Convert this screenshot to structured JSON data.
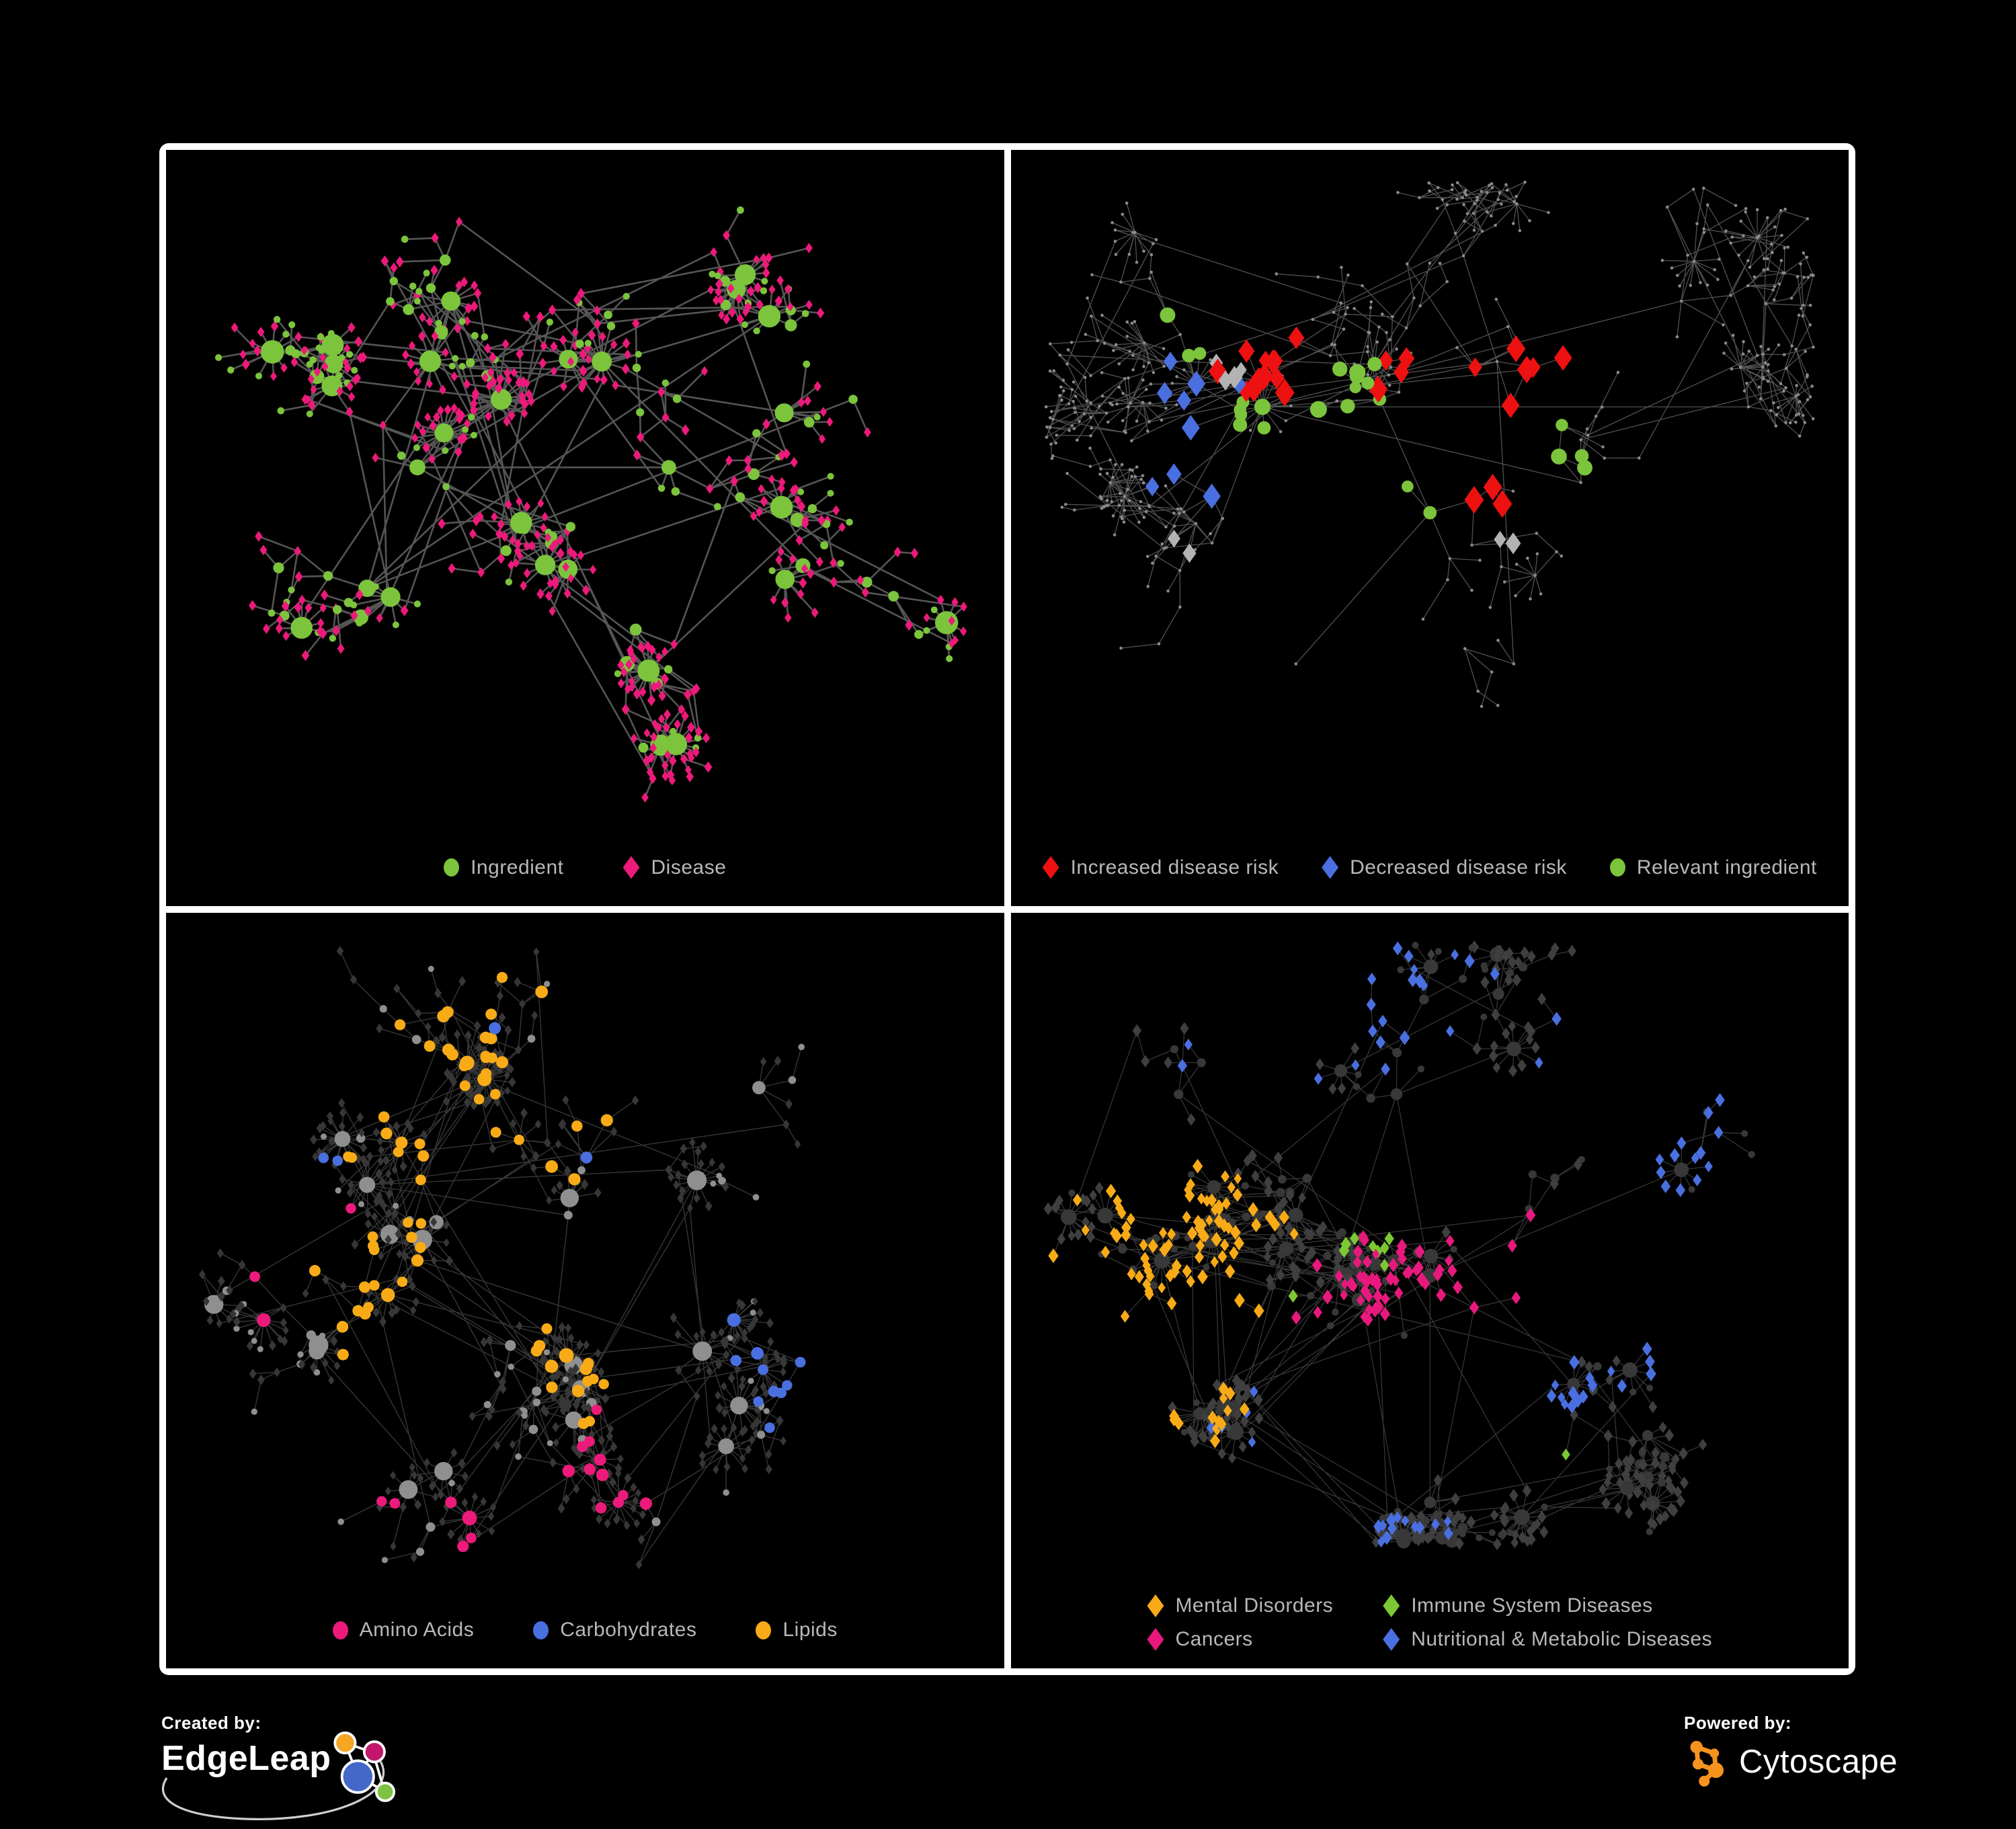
{
  "page": {
    "background": "#000000",
    "frame_color": "#ffffff"
  },
  "footer": {
    "created_by": "Created by:",
    "created_brand": "EdgeLeap",
    "powered_by": "Powered by:",
    "powered_brand": "Cytoscape"
  },
  "colors": {
    "ingredient_green": "#7cc43c",
    "disease_pink": "#ec1a7a",
    "increased_red": "#ee1111",
    "decreased_blue": "#4a6fe0",
    "neutral_silver": "#b3b3b3",
    "lipids_orange": "#f8ab17",
    "immune_green": "#7cc832",
    "dim_node": "#3d3d3d",
    "edge_gray": "#6a6a6a",
    "legend_text": "#b8b8b8"
  },
  "chart_data": [
    {
      "id": "ingredient-disease-network",
      "type": "network",
      "position": "top-left",
      "description": "Ingredient-disease association network: green circles are ingredients (size ~ degree), pink diamonds are diseases.",
      "node_count_estimate": 560,
      "edge_count_estimate": 620,
      "legend": [
        {
          "label": "Ingredient",
          "shape": "circle",
          "color": "#7cc43c"
        },
        {
          "label": "Disease",
          "shape": "diamond",
          "color": "#ec1a7a"
        }
      ],
      "gen": {
        "seed": 101,
        "n": 560,
        "padBottom": 155,
        "anchors": [
          [
            0.4,
            0.33
          ],
          [
            0.3,
            0.42
          ],
          [
            0.52,
            0.28
          ],
          [
            0.46,
            0.52
          ],
          [
            0.24,
            0.58
          ],
          [
            0.6,
            0.42
          ],
          [
            0.72,
            0.22
          ],
          [
            0.34,
            0.2
          ],
          [
            0.55,
            0.68
          ],
          [
            0.76,
            0.55
          ],
          [
            0.18,
            0.3
          ],
          [
            0.82,
            0.33
          ]
        ],
        "chainProb": 0.45,
        "hubBias": 1.15,
        "step": 46,
        "burstProb": 0.1,
        "burstMin": 7,
        "burstMax": 15,
        "leafDist": 36,
        "extraEdges": 60
      },
      "render": {
        "edge": {
          "color": "#6a6a6a",
          "opacity": 0.8,
          "width": 2.6
        },
        "base": {
          "mode": "typed",
          "ingredient": {
            "shape": "circle",
            "color": "#7cc43c",
            "size": 5.5,
            "sizeVar": 1.2
          },
          "disease": {
            "shape": "diamond",
            "color": "#ec1a7a",
            "size": 7
          }
        },
        "highlights": []
      }
    },
    {
      "id": "disease-risk-network",
      "type": "network",
      "position": "top-right",
      "description": "Same association network, dimmed; diamonds mark diseases with increased (red), decreased (blue) or undirected (silver) risk; green circles are relevant ingredients.",
      "node_count_estimate": 540,
      "edge_count_estimate": 590,
      "legend": [
        {
          "label": "Increased disease risk",
          "shape": "diamond",
          "color": "#ee1111"
        },
        {
          "label": "Decreased disease risk",
          "shape": "diamond",
          "color": "#4a6fe0"
        },
        {
          "label": "Relevant ingredient",
          "shape": "circle",
          "color": "#7cc43c"
        }
      ],
      "gen": {
        "seed": 202,
        "n": 540,
        "padBottom": 150,
        "anchors": [
          [
            0.44,
            0.33
          ],
          [
            0.3,
            0.34
          ],
          [
            0.58,
            0.28
          ],
          [
            0.5,
            0.48
          ],
          [
            0.24,
            0.52
          ],
          [
            0.68,
            0.44
          ],
          [
            0.8,
            0.2
          ],
          [
            0.34,
            0.68
          ],
          [
            0.6,
            0.68
          ],
          [
            0.14,
            0.34
          ],
          [
            0.88,
            0.34
          ],
          [
            0.54,
            0.14
          ]
        ],
        "chainProb": 0.62,
        "hubBias": 0.9,
        "step": 52,
        "burstProb": 0.09,
        "burstMin": 6,
        "burstMax": 14,
        "leafDist": 38,
        "extraEdges": 50
      },
      "render": {
        "edge": {
          "color": "#5f5f5f",
          "opacity": 0.85,
          "width": 1.3
        },
        "base": {
          "mode": "dot",
          "color": "#8a8a8a",
          "r": 2.3
        },
        "highlights": [
          {
            "name": "Increased disease risk",
            "shape": "diamond",
            "color": "#ee1111",
            "size": 16,
            "count": 26,
            "spread": 150,
            "type": "any",
            "foci": [
              [
                0.5,
                0.32
              ],
              [
                0.56,
                0.42
              ],
              [
                0.3,
                0.26
              ],
              [
                0.62,
                0.3
              ],
              [
                0.45,
                0.42
              ],
              [
                0.4,
                0.58
              ],
              [
                0.6,
                0.8
              ],
              [
                0.68,
                0.76
              ]
            ]
          },
          {
            "name": "Decreased disease risk",
            "shape": "diamond",
            "color": "#4a6fe0",
            "size": 15,
            "count": 9,
            "spread": 100,
            "type": "any",
            "foci": [
              [
                0.23,
                0.32
              ],
              [
                0.21,
                0.42
              ],
              [
                0.82,
                0.34
              ]
            ]
          },
          {
            "name": "Undirected risk",
            "shape": "diamond",
            "color": "#b3b3b3",
            "size": 13,
            "count": 8,
            "spread": 130,
            "type": "any",
            "foci": [
              [
                0.26,
                0.29
              ],
              [
                0.52,
                0.37
              ],
              [
                0.58,
                0.52
              ],
              [
                0.2,
                0.52
              ],
              [
                0.3,
                0.62
              ]
            ]
          },
          {
            "name": "Relevant ingredient",
            "shape": "circle",
            "color": "#7cc43c",
            "size": 10,
            "count": 24,
            "spread": 230,
            "type": "any",
            "foci": [
              [
                0.42,
                0.33
              ],
              [
                0.28,
                0.33
              ],
              [
                0.52,
                0.44
              ],
              [
                0.64,
                0.4
              ],
              [
                0.22,
                0.22
              ],
              [
                0.48,
                0.55
              ],
              [
                0.8,
                0.36
              ]
            ]
          }
        ]
      }
    },
    {
      "id": "ingredient-class-network",
      "type": "network",
      "position": "bottom-left",
      "description": "Network with diseases dimmed to dark diamonds; ingredient circles colored by chemical class (amino acids pink, carbohydrates blue, lipids orange), others gray.",
      "node_count_estimate": 620,
      "edge_count_estimate": 700,
      "legend": [
        {
          "label": "Amino Acids",
          "shape": "circle",
          "color": "#ec1a7a"
        },
        {
          "label": "Carbohydrates",
          "shape": "circle",
          "color": "#4a6fe0"
        },
        {
          "label": "Lipids",
          "shape": "circle",
          "color": "#f8ab17"
        }
      ],
      "gen": {
        "seed": 303,
        "n": 620,
        "padBottom": 150,
        "anchors": [
          [
            0.38,
            0.22
          ],
          [
            0.24,
            0.36
          ],
          [
            0.3,
            0.46
          ],
          [
            0.48,
            0.4
          ],
          [
            0.26,
            0.27
          ],
          [
            0.6,
            0.34
          ],
          [
            0.46,
            0.6
          ],
          [
            0.64,
            0.58
          ],
          [
            0.18,
            0.58
          ],
          [
            0.74,
            0.28
          ],
          [
            0.54,
            0.78
          ],
          [
            0.34,
            0.78
          ]
        ],
        "chainProb": 0.5,
        "hubBias": 1.1,
        "step": 46,
        "burstProb": 0.11,
        "burstMin": 7,
        "burstMax": 16,
        "leafDist": 34,
        "extraEdges": 70
      },
      "render": {
        "edge": {
          "color": "#9a9a9a",
          "opacity": 0.35,
          "width": 1.4
        },
        "base": {
          "mode": "typed",
          "ingredient": {
            "shape": "circle",
            "color": "#8f8f8f",
            "size": 5,
            "sizeVar": 1.0
          },
          "disease": {
            "shape": "diamond",
            "color": "#373737",
            "size": 6.5
          }
        },
        "highlights": [
          {
            "name": "Lipids",
            "shape": "circle",
            "color": "#f8ab17",
            "size": 9,
            "count": 70,
            "spread": 160,
            "type": "i",
            "foci": [
              [
                0.38,
                0.22
              ],
              [
                0.31,
                0.3
              ],
              [
                0.45,
                0.27
              ],
              [
                0.5,
                0.54
              ],
              [
                0.26,
                0.5
              ],
              [
                0.56,
                0.24
              ]
            ]
          },
          {
            "name": "Amino Acids",
            "shape": "circle",
            "color": "#ec1a7a",
            "size": 9,
            "count": 20,
            "spread": 700,
            "type": "i",
            "foci": [
              [
                0.14,
                0.44
              ],
              [
                0.54,
                0.74
              ],
              [
                0.76,
                0.3
              ],
              [
                0.4,
                0.84
              ],
              [
                0.88,
                0.24
              ],
              [
                0.2,
                0.74
              ],
              [
                0.6,
                0.1
              ]
            ]
          },
          {
            "name": "Carbohydrates",
            "shape": "circle",
            "color": "#4a6fe0",
            "size": 9,
            "count": 14,
            "spread": 260,
            "type": "i",
            "foci": [
              [
                0.36,
                0.2
              ],
              [
                0.42,
                0.26
              ],
              [
                0.12,
                0.3
              ],
              [
                0.74,
                0.58
              ]
            ]
          }
        ]
      }
    },
    {
      "id": "disease-class-network",
      "type": "network",
      "position": "bottom-right",
      "description": "Network with everything dimmed; disease diamonds colored by category: mental disorders orange, cancers pink, immune system diseases green, nutritional & metabolic diseases blue.",
      "node_count_estimate": 650,
      "edge_count_estimate": 740,
      "legend": [
        {
          "label": "Mental Disorders",
          "shape": "diamond",
          "color": "#f8ab17"
        },
        {
          "label": "Immune System Diseases",
          "shape": "diamond",
          "color": "#7cc832"
        },
        {
          "label": "Cancers",
          "shape": "diamond",
          "color": "#e8197d"
        },
        {
          "label": "Nutritional & Metabolic Diseases",
          "shape": "diamond",
          "color": "#4a6fe0"
        }
      ],
      "gen": {
        "seed": 404,
        "n": 650,
        "padBottom": 185,
        "anchors": [
          [
            0.18,
            0.46
          ],
          [
            0.34,
            0.4
          ],
          [
            0.5,
            0.48
          ],
          [
            0.62,
            0.4
          ],
          [
            0.7,
            0.6
          ],
          [
            0.46,
            0.24
          ],
          [
            0.28,
            0.64
          ],
          [
            0.6,
            0.18
          ],
          [
            0.8,
            0.34
          ],
          [
            0.2,
            0.24
          ],
          [
            0.5,
            0.78
          ],
          [
            0.78,
            0.72
          ]
        ],
        "chainProb": 0.5,
        "hubBias": 1.1,
        "step": 44,
        "burstProb": 0.12,
        "burstMin": 7,
        "burstMax": 16,
        "leafDist": 33,
        "extraEdges": 85
      },
      "render": {
        "edge": {
          "color": "#8f8f8f",
          "opacity": 0.4,
          "width": 1.2
        },
        "base": {
          "mode": "typed",
          "ingredient": {
            "shape": "circle",
            "color": "#383838",
            "size": 5.5,
            "sizeVar": 0.6
          },
          "disease": {
            "shape": "diamond",
            "color": "#3f3f3f",
            "size": 8
          }
        },
        "highlights": [
          {
            "name": "Mental Disorders",
            "shape": "diamond",
            "color": "#f8ab17",
            "size": 8.5,
            "count": 95,
            "spread": 140,
            "type": "d",
            "foci": [
              [
                0.16,
                0.44
              ],
              [
                0.22,
                0.52
              ],
              [
                0.12,
                0.52
              ],
              [
                0.24,
                0.4
              ],
              [
                0.18,
                0.6
              ]
            ]
          },
          {
            "name": "Cancers",
            "shape": "diamond",
            "color": "#e8197d",
            "size": 8.5,
            "count": 58,
            "spread": 150,
            "type": "d",
            "foci": [
              [
                0.47,
                0.52
              ],
              [
                0.52,
                0.58
              ],
              [
                0.42,
                0.6
              ],
              [
                0.58,
                0.47
              ],
              [
                0.5,
                0.66
              ]
            ]
          },
          {
            "name": "Nutritional & Metabolic Diseases",
            "shape": "diamond",
            "color": "#4a6fe0",
            "size": 8.5,
            "count": 70,
            "spread": 190,
            "type": "d",
            "foci": [
              [
                0.56,
                0.66
              ],
              [
                0.62,
                0.62
              ],
              [
                0.8,
                0.3
              ],
              [
                0.72,
                0.2
              ],
              [
                0.36,
                0.74
              ],
              [
                0.3,
                0.16
              ],
              [
                0.86,
                0.54
              ],
              [
                0.44,
                0.12
              ]
            ]
          },
          {
            "name": "Immune System Diseases",
            "shape": "diamond",
            "color": "#7cc832",
            "size": 8.5,
            "count": 10,
            "spread": 600,
            "type": "d",
            "foci": [
              [
                0.44,
                0.44
              ],
              [
                0.54,
                0.34
              ],
              [
                0.36,
                0.54
              ],
              [
                0.64,
                0.72
              ]
            ]
          }
        ]
      }
    }
  ]
}
